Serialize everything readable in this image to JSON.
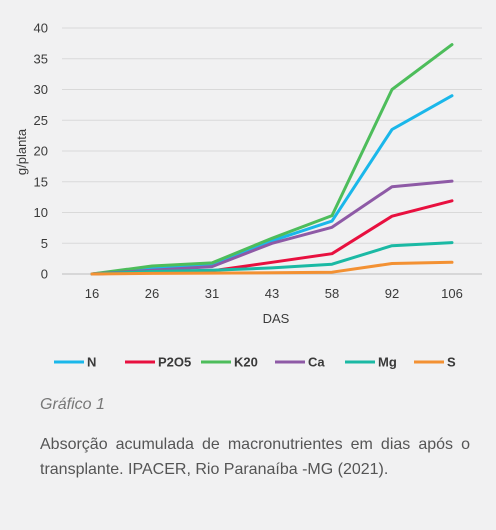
{
  "chart_data": {
    "type": "line",
    "title": "",
    "xlabel": "DAS",
    "ylabel": "g/planta",
    "ylim": [
      0,
      40
    ],
    "yticks": [
      0,
      5,
      10,
      15,
      20,
      25,
      30,
      35,
      40
    ],
    "categories": [
      "16",
      "26",
      "31",
      "43",
      "58",
      "92",
      "106"
    ],
    "grid": "horizontal",
    "legend_position": "bottom",
    "series": [
      {
        "name": "N",
        "color": "#1ab7ea",
        "values": [
          0,
          1.0,
          1.6,
          5.4,
          8.6,
          23.5,
          29.0
        ]
      },
      {
        "name": "P2O5",
        "color": "#e8103f",
        "values": [
          0,
          0.3,
          0.5,
          1.9,
          3.3,
          9.4,
          11.9
        ]
      },
      {
        "name": "K20",
        "color": "#4dbd5b",
        "values": [
          0,
          1.3,
          1.8,
          5.8,
          9.5,
          30.0,
          37.3
        ]
      },
      {
        "name": "Ca",
        "color": "#8e5aa6",
        "values": [
          0,
          0.6,
          1.2,
          5.0,
          7.6,
          14.2,
          15.1
        ]
      },
      {
        "name": "Mg",
        "color": "#1bb9a4",
        "values": [
          0,
          0.4,
          0.6,
          1.0,
          1.6,
          4.6,
          5.1
        ]
      },
      {
        "name": "S",
        "color": "#f39133",
        "values": [
          0,
          0.1,
          0.15,
          0.2,
          0.3,
          1.7,
          1.9
        ]
      }
    ]
  },
  "caption": {
    "label": "Gráfico 1",
    "text": "Absorção acumulada de macronutrientes em dias após o transplante. IPACER, Rio Paranaíba -MG (2021)."
  }
}
